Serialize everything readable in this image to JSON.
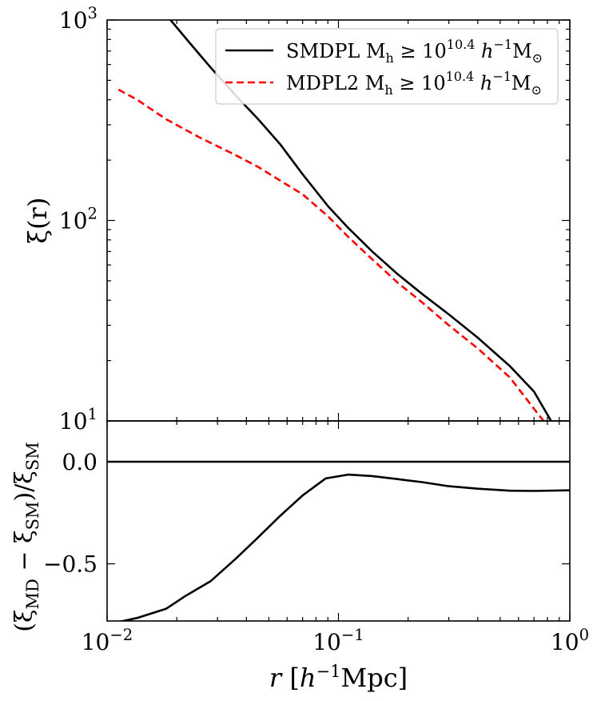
{
  "chart_data": [
    {
      "type": "line",
      "panel": "top",
      "ylabel": "ξ(r)",
      "yscale": "log",
      "xscale": "log",
      "xlim": [
        0.01,
        1
      ],
      "ylim": [
        10,
        1000
      ],
      "ytick_labels": [
        {
          "value": 10,
          "base": "10",
          "exp": "1"
        },
        {
          "value": 100,
          "base": "10",
          "exp": "2"
        },
        {
          "value": 1000,
          "base": "10",
          "exp": "3"
        }
      ],
      "legend": {
        "placement": "top-right",
        "entries": [
          {
            "prefix": "SMDPL M",
            "sub": "h",
            "mid": " ≥ 10",
            "sup": "10.4",
            "unit1": " h",
            "unit1sup": "−1",
            "unit2": "M",
            "unit2sub": "⊙"
          },
          {
            "prefix": "MDPL2 M",
            "sub": "h",
            "mid": " ≥ 10",
            "sup": "10.4",
            "unit1": " h",
            "unit1sup": "−1",
            "unit2": "M",
            "unit2sub": "⊙"
          }
        ]
      },
      "series": [
        {
          "color": "#000000",
          "dash": "solid",
          "x": [
            0.0188,
            0.0225,
            0.028,
            0.036,
            0.045,
            0.056,
            0.07,
            0.09,
            0.11,
            0.14,
            0.18,
            0.23,
            0.3,
            0.4,
            0.55,
            0.7,
            0.83
          ],
          "y": [
            1000,
            780,
            580,
            420,
            320,
            240,
            170,
            118,
            92,
            70,
            54,
            43,
            34,
            26,
            18.8,
            14,
            10
          ]
        },
        {
          "color": "#ff0000",
          "dash": "dashed",
          "x": [
            0.0112,
            0.0135,
            0.018,
            0.025,
            0.035,
            0.045,
            0.056,
            0.07,
            0.09,
            0.11,
            0.14,
            0.18,
            0.23,
            0.3,
            0.4,
            0.55,
            0.7,
            0.77
          ],
          "y": [
            450,
            400,
            320,
            260,
            215,
            185,
            158,
            135,
            105,
            83,
            64,
            49,
            39,
            30,
            23,
            16.5,
            11.5,
            10
          ]
        }
      ]
    },
    {
      "type": "line",
      "panel": "bottom",
      "xlabel_main": "r",
      "xlabel_unit_h": "h",
      "xlabel_unit_sup": "−1",
      "xlabel_unit_rest": "Mpc",
      "ylabel_parts": {
        "open": "(ξ",
        "sub1": "MD",
        "minus": " − ξ",
        "sub2": "SM",
        "close": ")/ξ",
        "sub3": "SM"
      },
      "xscale": "log",
      "xlim": [
        0.01,
        1
      ],
      "ylim": [
        -0.78,
        0.2
      ],
      "xtick_labels": [
        {
          "value": 0.01,
          "base": "10",
          "exp": "−2"
        },
        {
          "value": 0.1,
          "base": "10",
          "exp": "−1"
        },
        {
          "value": 1,
          "base": "10",
          "exp": "0"
        }
      ],
      "yticks": [
        {
          "value": 0.0,
          "label": "0.0"
        },
        {
          "value": -0.5,
          "label": "−0.5"
        }
      ],
      "series": [
        {
          "color": "#000000",
          "x": [
            0.01,
            1
          ],
          "y": [
            0.0,
            0.0
          ]
        },
        {
          "color": "#000000",
          "x": [
            0.0112,
            0.0135,
            0.018,
            0.022,
            0.028,
            0.036,
            0.045,
            0.056,
            0.07,
            0.088,
            0.11,
            0.14,
            0.18,
            0.23,
            0.3,
            0.4,
            0.55,
            0.7,
            1.0
          ],
          "y": [
            -0.785,
            -0.765,
            -0.72,
            -0.655,
            -0.585,
            -0.475,
            -0.37,
            -0.265,
            -0.165,
            -0.082,
            -0.063,
            -0.07,
            -0.085,
            -0.1,
            -0.12,
            -0.132,
            -0.142,
            -0.143,
            -0.14
          ]
        }
      ]
    }
  ]
}
